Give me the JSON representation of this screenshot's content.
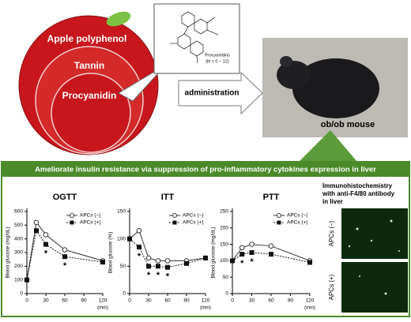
{
  "top": {
    "apple_labels": [
      "Apple polyphenol",
      "Tannin",
      "Procyanidin"
    ],
    "structure_name": "Procyanidins",
    "structure_n": "(N = 0 ~ 12)",
    "arrow_label": "administration",
    "mouse_label": "ob/ob mouse"
  },
  "banner": "Ameliorate insulin resistance via suppression of pro-inflammatory cytokines expression in liver",
  "ihc": {
    "title_lines": [
      "Immunohistochemistry",
      "with anti-F4/80 antibody",
      "in liver"
    ],
    "labels": [
      "APCs (−)",
      "APCs (+)"
    ]
  },
  "chart_data": [
    {
      "type": "line",
      "title": "OGTT",
      "ylabel": "Blood glucose (mg/dL)",
      "xlabel": "(min)",
      "x": [
        0,
        15,
        30,
        60,
        120
      ],
      "xlim": [
        0,
        120
      ],
      "xticks": [
        0,
        30,
        60,
        90,
        120
      ],
      "ylim": [
        0,
        600
      ],
      "yticks": [
        0,
        100,
        200,
        300,
        400,
        500,
        600
      ],
      "series": [
        {
          "name": "APCs (−)",
          "color": "#333333",
          "values": [
            100,
            520,
            430,
            320,
            240
          ]
        },
        {
          "name": "APCs (+)",
          "color": "#111111",
          "values": [
            100,
            460,
            360,
            270,
            230
          ]
        }
      ],
      "annotations": [
        {
          "x": 30,
          "label": "*"
        },
        {
          "x": 60,
          "label": "*"
        }
      ]
    },
    {
      "type": "line",
      "title": "ITT",
      "ylabel": "Blood glucose (%)",
      "xlabel": "(min)",
      "x": [
        0,
        15,
        30,
        45,
        60,
        90,
        120
      ],
      "xlim": [
        0,
        120
      ],
      "xticks": [
        0,
        30,
        60,
        90,
        120
      ],
      "ylim": [
        0,
        150
      ],
      "yticks": [
        0,
        50,
        100,
        150
      ],
      "series": [
        {
          "name": "APCs (−)",
          "color": "#333333",
          "values": [
            100,
            115,
            65,
            60,
            60,
            60,
            65
          ]
        },
        {
          "name": "APCs (+)",
          "color": "#111111",
          "values": [
            100,
            85,
            50,
            50,
            48,
            55,
            65
          ]
        }
      ],
      "annotations": [
        {
          "x": 15,
          "label": "*"
        },
        {
          "x": 30,
          "label": "*"
        },
        {
          "x": 45,
          "label": "*"
        },
        {
          "x": 60,
          "label": "*"
        }
      ]
    },
    {
      "type": "line",
      "title": "PTT",
      "ylabel": "Blood glucose (mg/dL)",
      "xlabel": "(min)",
      "x": [
        0,
        15,
        30,
        60,
        120
      ],
      "xlim": [
        0,
        120
      ],
      "xticks": [
        0,
        30,
        60,
        90,
        120
      ],
      "ylim": [
        0,
        250
      ],
      "yticks": [
        0,
        50,
        100,
        150,
        200,
        250
      ],
      "series": [
        {
          "name": "APCs (−)",
          "color": "#333333",
          "values": [
            100,
            140,
            150,
            145,
            100
          ]
        },
        {
          "name": "APCs (+)",
          "color": "#111111",
          "values": [
            100,
            120,
            125,
            120,
            95
          ]
        }
      ],
      "annotations": [
        {
          "x": 15,
          "label": "*"
        },
        {
          "x": 30,
          "label": "*"
        }
      ]
    }
  ]
}
